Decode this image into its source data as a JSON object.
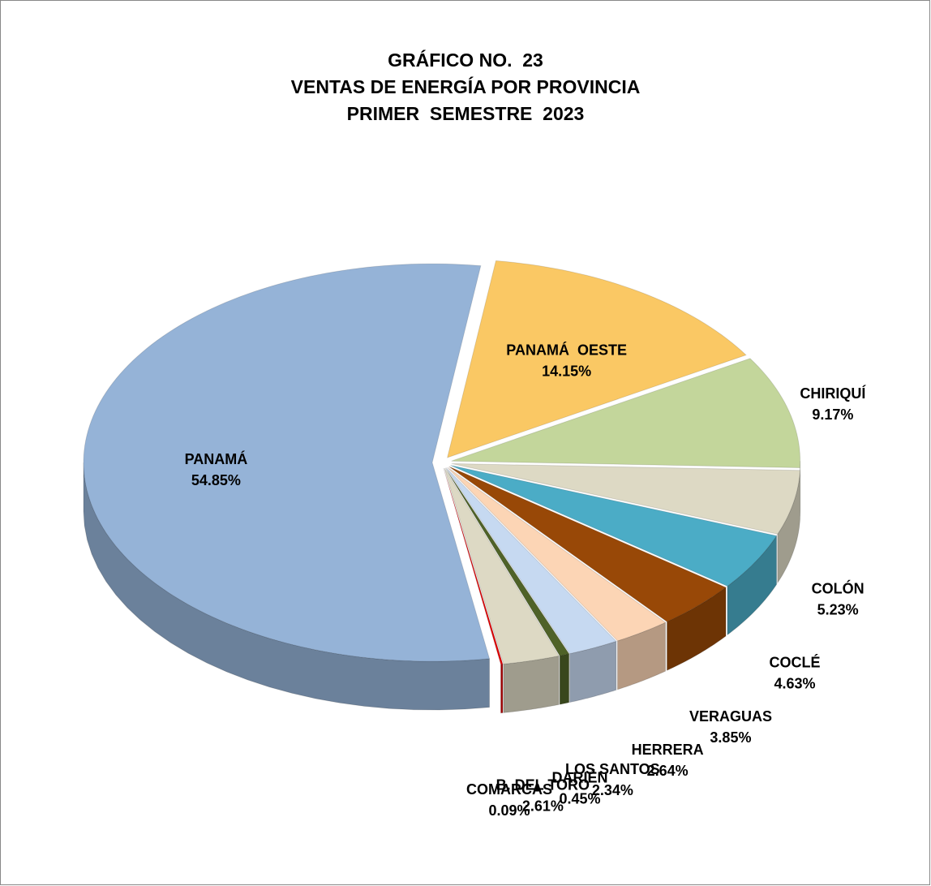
{
  "chart_data": {
    "type": "pie3d",
    "title": [
      "GRÁFICO NO.  23",
      "VENTAS DE ENERGÍA POR PROVINCIA",
      "PRIMER  SEMESTRE  2023"
    ],
    "categories": [
      "PANAMÁ  OESTE",
      "CHIRIQUÍ",
      "COLÓN",
      "COCLÉ",
      "VERAGUAS",
      "HERRERA",
      "LOS SANTOS",
      "DARIÉN",
      "B. DEL TORO",
      "COMARCAS",
      "PANAMÁ"
    ],
    "values": [
      14.15,
      9.17,
      5.23,
      4.63,
      3.85,
      2.64,
      2.34,
      0.45,
      2.61,
      0.09,
      54.85
    ],
    "value_labels": [
      "14.15%",
      "9.17%",
      "5.23%",
      "4.63%",
      "3.85%",
      "2.64%",
      "2.34%",
      "0.45%",
      "2.61%",
      "0.09%",
      "54.85%"
    ],
    "colors": [
      "#fac864",
      "#c3d69b",
      "#ddd9c4",
      "#4bacc6",
      "#984807",
      "#fcd5b5",
      "#c6d9f1",
      "#4f6228",
      "#ddd9c4",
      "#e00000",
      "#95b3d7"
    ]
  }
}
